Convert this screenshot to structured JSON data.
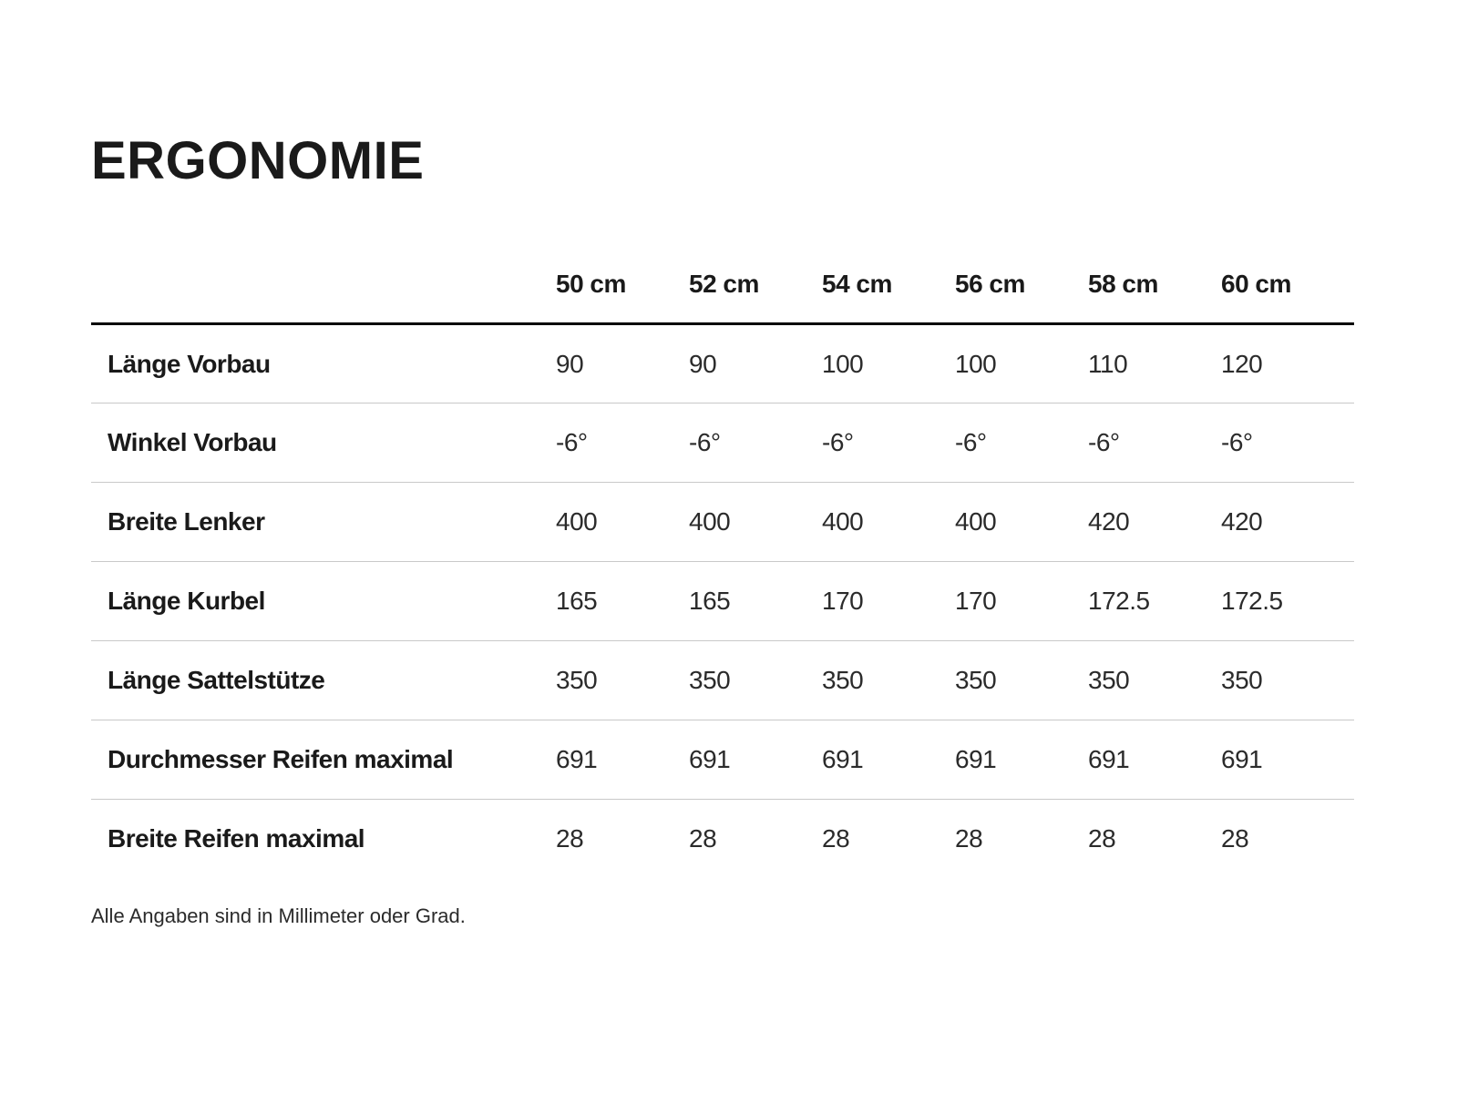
{
  "page": {
    "title": "ERGONOMIE",
    "footnote": "Alle Angaben sind in Millimeter oder Grad."
  },
  "table": {
    "columns": [
      "50 cm",
      "52 cm",
      "54 cm",
      "56 cm",
      "58 cm",
      "60 cm"
    ],
    "rows": [
      {
        "label": "Länge Vorbau",
        "values": [
          "90",
          "90",
          "100",
          "100",
          "110",
          "120"
        ]
      },
      {
        "label": "Winkel Vorbau",
        "values": [
          "-6°",
          "-6°",
          "-6°",
          "-6°",
          "-6°",
          "-6°"
        ]
      },
      {
        "label": "Breite Lenker",
        "values": [
          "400",
          "400",
          "400",
          "400",
          "420",
          "420"
        ]
      },
      {
        "label": "Länge Kurbel",
        "values": [
          "165",
          "165",
          "170",
          "170",
          "172.5",
          "172.5"
        ]
      },
      {
        "label": "Länge Sattelstütze",
        "values": [
          "350",
          "350",
          "350",
          "350",
          "350",
          "350"
        ]
      },
      {
        "label": "Durchmesser Reifen maximal",
        "values": [
          "691",
          "691",
          "691",
          "691",
          "691",
          "691"
        ]
      },
      {
        "label": "Breite Reifen maximal",
        "values": [
          "28",
          "28",
          "28",
          "28",
          "28",
          "28"
        ]
      }
    ]
  },
  "colors": {
    "background": "#ffffff",
    "text": "#1a1a1a",
    "value_text": "#2b2b2b",
    "header_rule": "#000000",
    "row_separator": "#c9c9c9"
  }
}
